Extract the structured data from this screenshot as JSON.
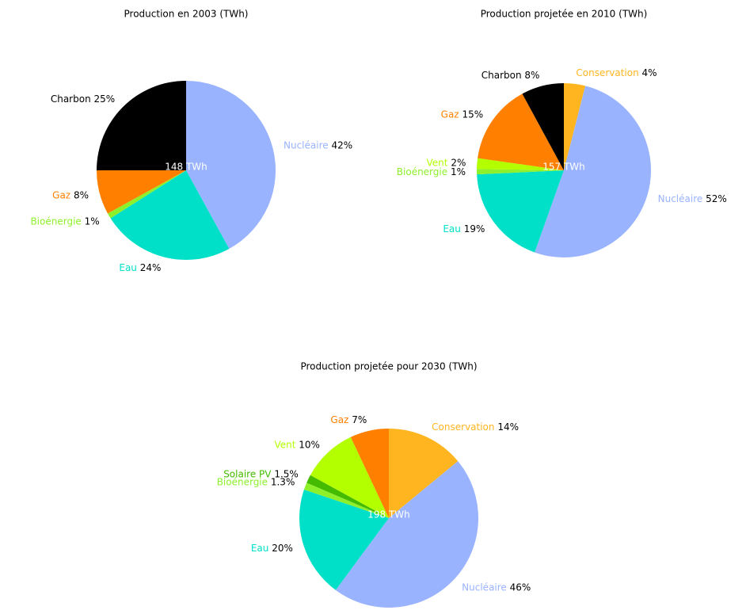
{
  "chart_data": [
    {
      "type": "pie",
      "title": "Production en 2003 (TWh)",
      "center_label": "148 TWh",
      "categories": [
        "Nucléaire",
        "Eau",
        "Bioénergie",
        "Gaz",
        "Charbon"
      ],
      "values": [
        42,
        24,
        1,
        8,
        25
      ],
      "value_labels": [
        "42%",
        "24%",
        "1%",
        "8%",
        "25%"
      ],
      "colors": [
        "#99b3ff",
        "#00e0c8",
        "#8ef02a",
        "#ff8000",
        "#000000"
      ]
    },
    {
      "type": "pie",
      "title": "Production projetée en 2010 (TWh)",
      "center_label": "157 TWh",
      "categories": [
        "Conservation",
        "Nucléaire",
        "Eau",
        "Bioénergie",
        "Vent",
        "Gaz",
        "Charbon"
      ],
      "values": [
        4,
        52,
        19,
        1,
        2,
        15,
        8
      ],
      "value_labels": [
        "4%",
        "52%",
        "19%",
        "1%",
        "2%",
        "15%",
        "8%"
      ],
      "colors": [
        "#ffb520",
        "#99b3ff",
        "#00e0c8",
        "#8ef02a",
        "#b3ff00",
        "#ff8000",
        "#000000"
      ]
    },
    {
      "type": "pie",
      "title": "Production projetée pour 2030 (TWh)",
      "center_label": "198 TWh",
      "categories": [
        "Conservation",
        "Nucléaire",
        "Eau",
        "Bioénergie",
        "Solaire PV",
        "Vent",
        "Gaz"
      ],
      "values": [
        14,
        46,
        20,
        1.3,
        1.5,
        10,
        7
      ],
      "value_labels": [
        "14%",
        "46%",
        "20%",
        "1.3%",
        "1.5%",
        "10%",
        "7%"
      ],
      "colors": [
        "#ffb520",
        "#99b3ff",
        "#00e0c8",
        "#8ef02a",
        "#44bb00",
        "#b3ff00",
        "#ff8000"
      ]
    }
  ]
}
